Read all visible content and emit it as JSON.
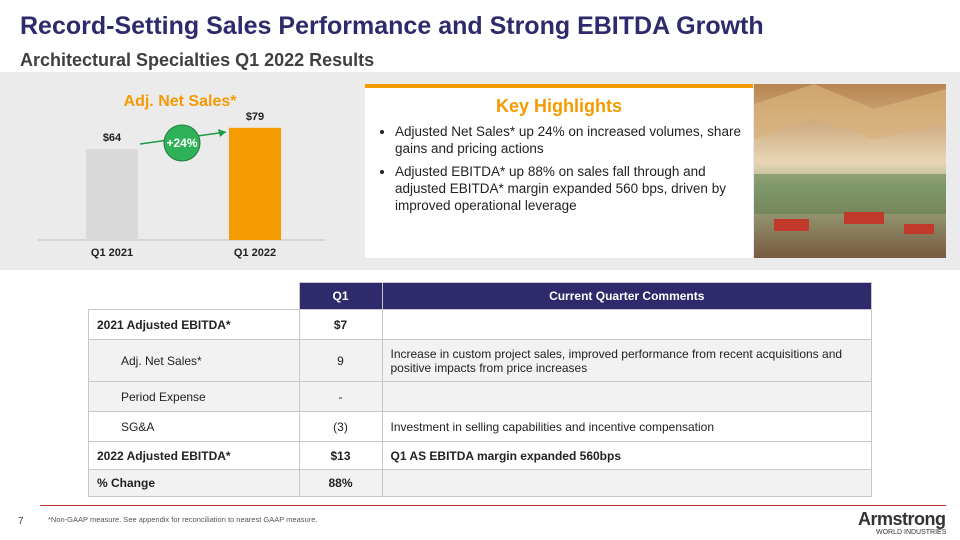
{
  "header": {
    "title": "Record-Setting Sales Performance and Strong EBITDA Growth",
    "subtitle": "Architectural Specialties Q1 2022 Results"
  },
  "chart_data": {
    "type": "bar",
    "title": "Adj. Net Sales*",
    "categories": [
      "Q1 2021",
      "Q1 2022"
    ],
    "values": [
      64,
      79
    ],
    "value_labels": [
      "$64",
      "$79"
    ],
    "colors": [
      "#d9d9d9",
      "#f59a00"
    ],
    "annotation": "+24%"
  },
  "highlights": {
    "title": "Key Highlights",
    "bullets": [
      "Adjusted Net Sales* up 24% on increased volumes, share gains and pricing actions",
      "Adjusted EBITDA* up 88% on sales fall through and adjusted EBITDA* margin expanded 560 bps, driven by improved operational leverage"
    ]
  },
  "table": {
    "header": [
      "Q1",
      "Current Quarter Comments"
    ],
    "rows": [
      {
        "label": "2021 Adjusted EBITDA*",
        "q1": "$7",
        "bold": true
      },
      {
        "label": "Adj. Net Sales*",
        "q1": "9",
        "comment": "Increase in custom project sales, improved performance from recent acquisitions and positive impacts from price increases",
        "indent": true
      },
      {
        "label": "Period Expense",
        "q1": "-",
        "indent": true
      },
      {
        "label": "SG&A",
        "q1": "(3)",
        "comment": "Investment in selling capabilities and incentive compensation",
        "indent": true
      },
      {
        "label": "2022 Adjusted EBITDA*",
        "q1": "$13",
        "comment": "Q1 AS EBITDA margin expanded 560bps",
        "bold": true
      },
      {
        "label": "% Change",
        "q1": "88%",
        "bold": true
      }
    ]
  },
  "footer": {
    "page": "7",
    "note": "*Non-GAAP measure. See appendix for reconciliation to nearest GAAP measure.",
    "logo": "Armstrong",
    "logo_sub": "WORLD INDUSTRIES"
  }
}
